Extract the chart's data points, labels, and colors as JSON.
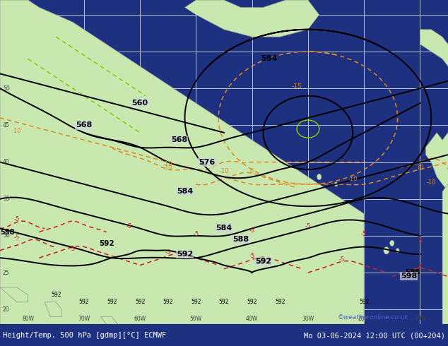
{
  "title_left": "Height/Temp. 500 hPa [gdmp][°C] ECMWF",
  "title_right": "Mo 03-06-2024 12:00 UTC (00+204)",
  "copyright": "©weatheronline.co.uk",
  "ocean_color": "#d0d8e0",
  "land_color": "#c8e8b0",
  "land_border_color": "#909090",
  "grid_color": "#b8c8d8",
  "bar_color": "#1e3080",
  "bar_text_color": "#ffffff",
  "copyright_color": "#4466cc",
  "black_contour_color": "#000000",
  "orange_contour_color": "#e08820",
  "red_contour_color": "#cc2020",
  "green_contour_color": "#88cc00",
  "figsize": [
    6.34,
    4.9
  ],
  "dpi": 100,
  "lon_min": -85,
  "lon_max": -5,
  "lat_min": 18,
  "lat_max": 62,
  "grid_lons": [
    -80,
    -70,
    -60,
    -50,
    -40,
    -30,
    -20,
    -10
  ],
  "grid_lats": [
    20,
    25,
    30,
    35,
    40,
    45,
    50,
    55,
    60
  ]
}
